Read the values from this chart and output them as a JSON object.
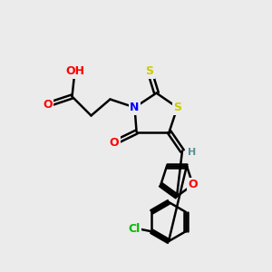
{
  "bg_color": "#ebebeb",
  "atom_colors": {
    "C": "#000000",
    "H": "#5a9090",
    "N": "#0000ff",
    "O": "#ff0000",
    "S": "#cccc00",
    "Cl": "#00bb00"
  },
  "bond_color": "#000000",
  "bond_width": 1.8,
  "figsize": [
    3.0,
    3.0
  ],
  "dpi": 100
}
